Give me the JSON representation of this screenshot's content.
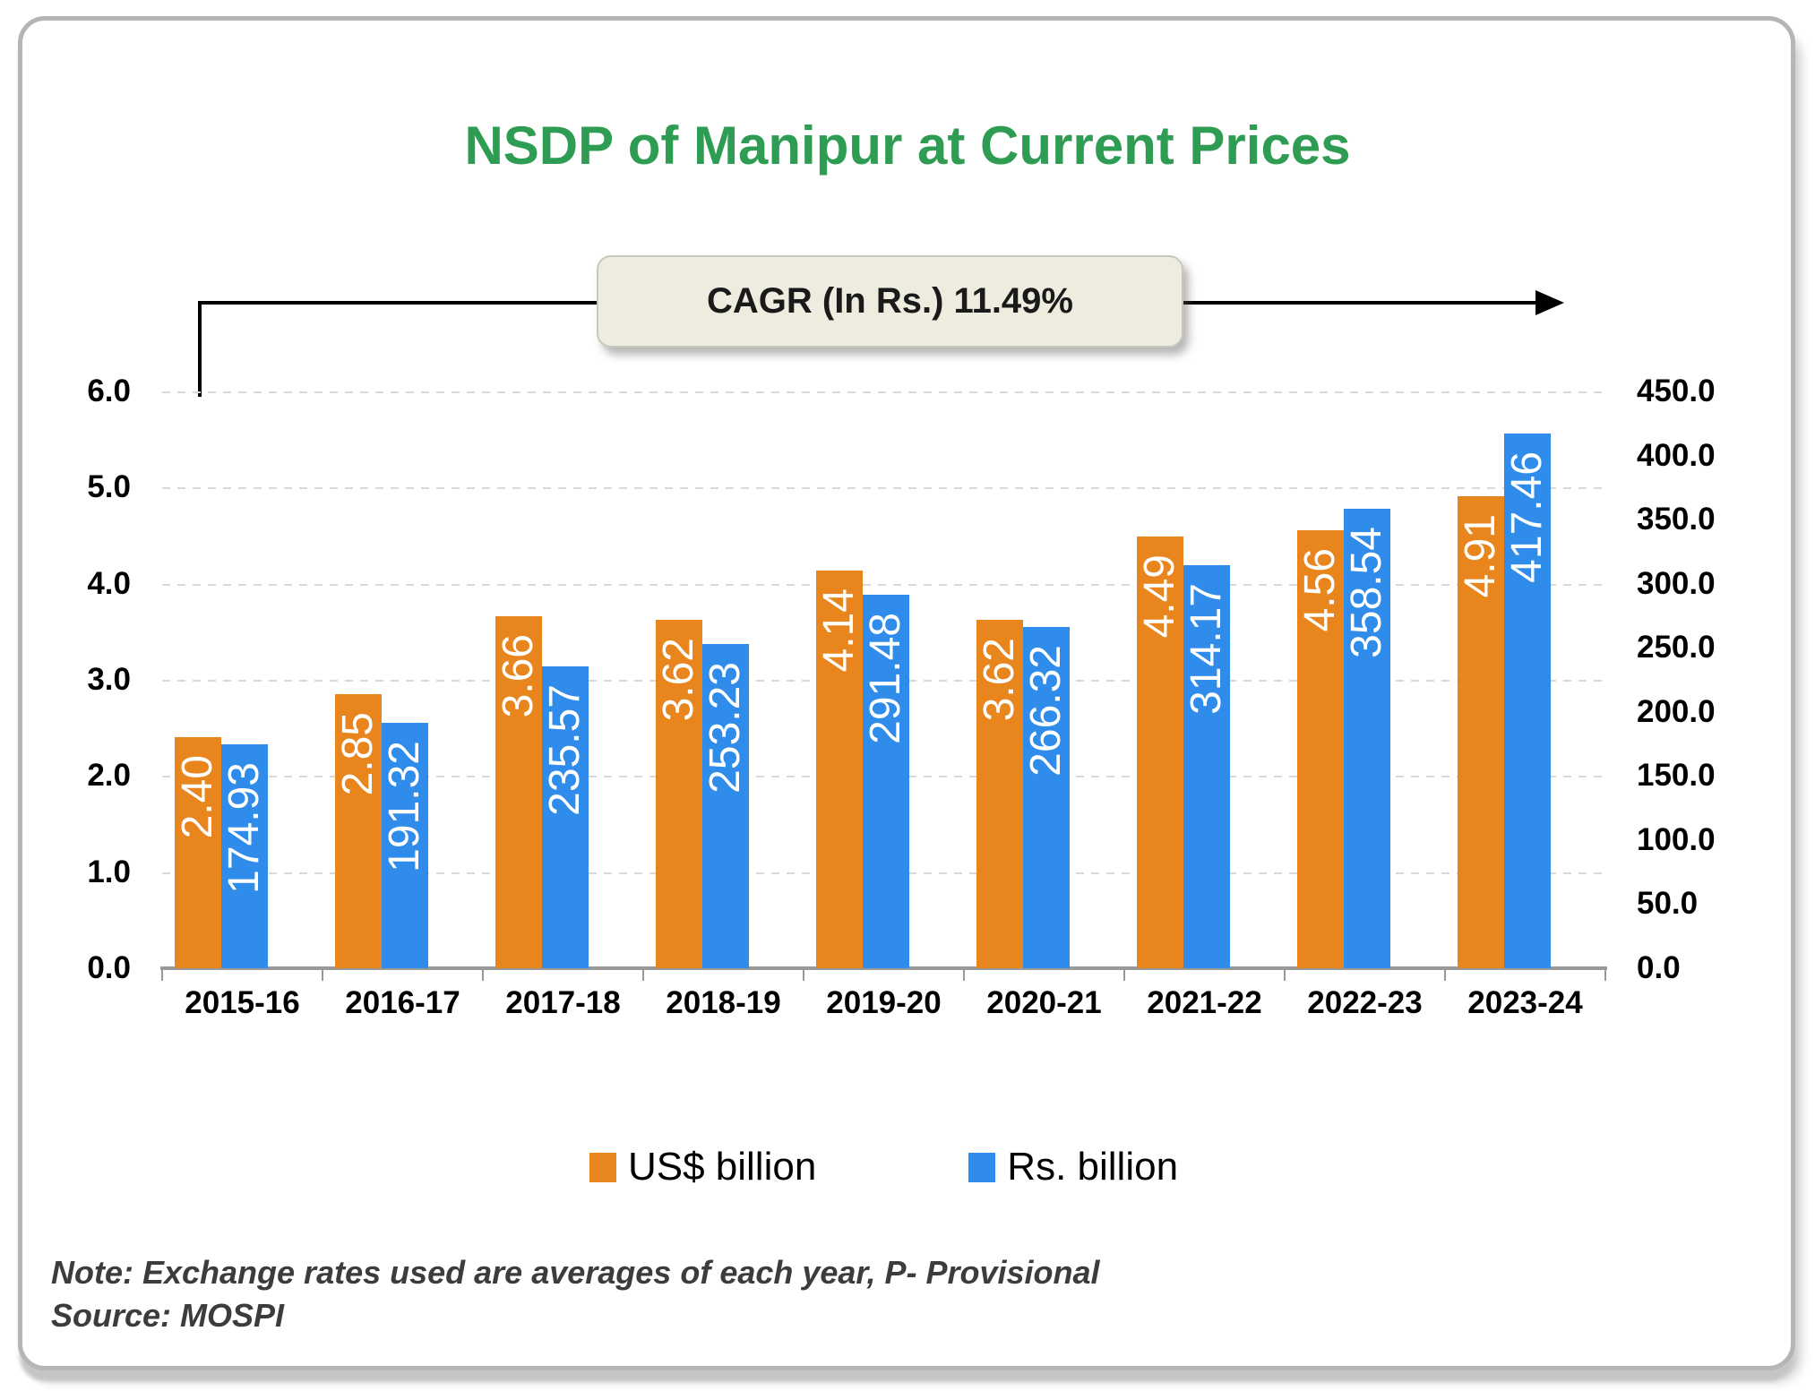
{
  "title": {
    "text": "NSDP of Manipur at Current Prices",
    "color": "#2E9C52"
  },
  "cagr_banner": {
    "label": "CAGR (In Rs.) 11.49%",
    "bg_color": "#EDECDF"
  },
  "chart_data": {
    "type": "bar",
    "title": "NSDP of Manipur at Current Prices",
    "categories": [
      "2015-16",
      "2016-17",
      "2017-18",
      "2018-19",
      "2019-20",
      "2020-21",
      "2021-22",
      "2022-23",
      "2023-24"
    ],
    "series": [
      {
        "name": "US$ billion",
        "axis": "left",
        "color": "#E8851D",
        "values": [
          2.4,
          2.85,
          3.66,
          3.62,
          4.14,
          3.62,
          4.49,
          4.56,
          4.91
        ],
        "labels": [
          "2.40",
          "2.85",
          "3.66",
          "3.62",
          "4.14",
          "3.62",
          "4.49",
          "4.56",
          "4.91"
        ]
      },
      {
        "name": "Rs. billion",
        "axis": "right",
        "color": "#2F8CEA",
        "values": [
          174.93,
          191.32,
          235.57,
          253.23,
          291.48,
          266.32,
          314.17,
          358.54,
          417.46
        ],
        "labels": [
          "174.93",
          "191.32",
          "235.57",
          "253.23",
          "291.48",
          "266.32",
          "314.17",
          "358.54",
          "417.46"
        ]
      }
    ],
    "left_axis": {
      "ticks": [
        "0.0",
        "1.0",
        "2.0",
        "3.0",
        "4.0",
        "5.0",
        "6.0"
      ],
      "min": 0,
      "max": 6
    },
    "right_axis": {
      "ticks": [
        "0.0",
        "50.0",
        "100.0",
        "150.0",
        "200.0",
        "250.0",
        "300.0",
        "350.0",
        "400.0",
        "450.0"
      ],
      "min": 0,
      "max": 450
    },
    "grid": true,
    "legend_position": "bottom",
    "bar_label_color": "#FFFFFF"
  },
  "notes": {
    "note": "Note: Exchange rates used are averages of each year, P- Provisional",
    "source": "Source: MOSPI"
  }
}
